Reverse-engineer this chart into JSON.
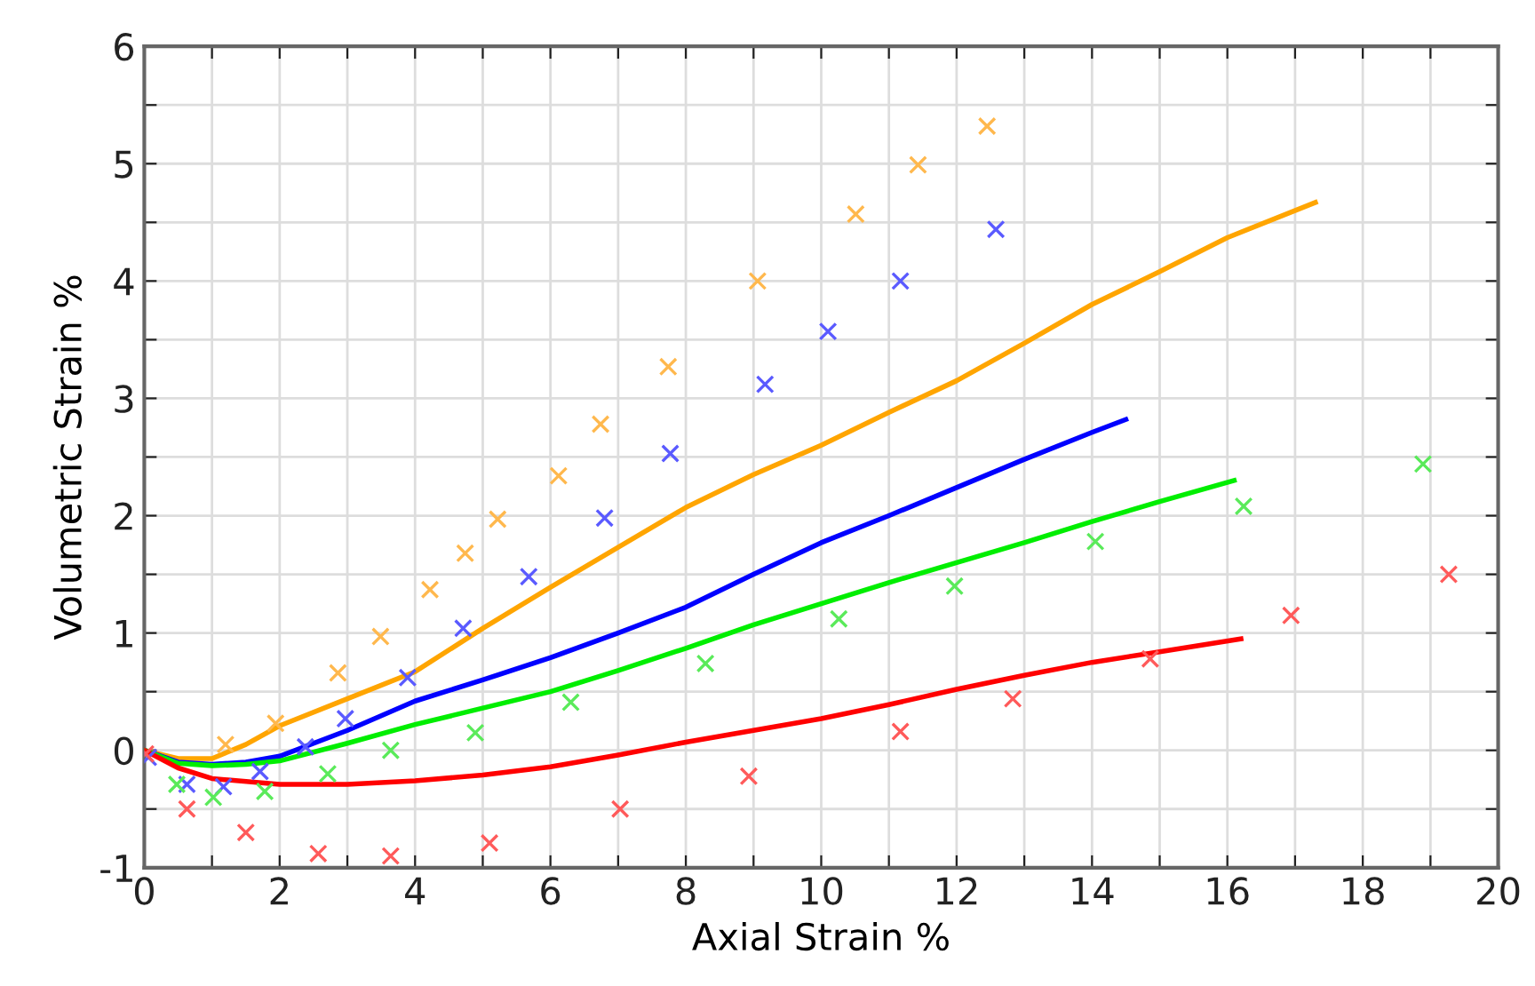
{
  "chart_data": {
    "type": "scatter",
    "xlabel": "Axial Strain %",
    "ylabel": "Volumetric Strain %",
    "xlim": [
      0,
      20
    ],
    "ylim": [
      -1,
      6
    ],
    "xticks": [
      0,
      {
        "value": 1,
        "label": null
      },
      2,
      {
        "value": 3,
        "label": null
      },
      4,
      {
        "value": 5,
        "label": null
      },
      6,
      {
        "value": 7,
        "label": null
      },
      8,
      {
        "value": 9,
        "label": null
      },
      10,
      {
        "value": 11,
        "label": null
      },
      12,
      {
        "value": 13,
        "label": null
      },
      14,
      {
        "value": 15,
        "label": null
      },
      16,
      {
        "value": 17,
        "label": null
      },
      18,
      {
        "value": 19,
        "label": null
      },
      20
    ],
    "yticks": [
      -1,
      {
        "value": -0.5,
        "label": null
      },
      0,
      {
        "value": 0.5,
        "label": null
      },
      1,
      {
        "value": 1.5,
        "label": null
      },
      2,
      {
        "value": 2.5,
        "label": null
      },
      3,
      {
        "value": 3.5,
        "label": null
      },
      4,
      {
        "value": 4.5,
        "label": null
      },
      5,
      {
        "value": 5.5,
        "label": null
      },
      6
    ],
    "grid": true,
    "legend": false,
    "series": [
      {
        "type": "line",
        "color": "#ffa500",
        "x": [
          0,
          0.5,
          1,
          1.5,
          2,
          3,
          4,
          5,
          6,
          7,
          8,
          9,
          10,
          11,
          12,
          13,
          14,
          15,
          16,
          17.3
        ],
        "values": [
          0,
          -0.07,
          -0.07,
          0.05,
          0.21,
          0.44,
          0.67,
          1.04,
          1.39,
          1.73,
          2.07,
          2.35,
          2.6,
          2.88,
          3.15,
          3.47,
          3.8,
          4.08,
          4.37,
          4.67
        ]
      },
      {
        "type": "line",
        "color": "#0000ff",
        "x": [
          0,
          0.5,
          1,
          1.5,
          2,
          3,
          4,
          5,
          6,
          7,
          8,
          9,
          10,
          11,
          12,
          13,
          14,
          14.5
        ],
        "values": [
          0,
          -0.1,
          -0.12,
          -0.1,
          -0.05,
          0.17,
          0.42,
          0.6,
          0.79,
          1.0,
          1.22,
          1.5,
          1.77,
          2.0,
          2.24,
          2.48,
          2.71,
          2.82
        ]
      },
      {
        "type": "line",
        "color": "#00ee00",
        "x": [
          0,
          0.5,
          1,
          1.5,
          2,
          3,
          4,
          5,
          6,
          7,
          8,
          9,
          10,
          11,
          12,
          13,
          14,
          15,
          16.1
        ],
        "values": [
          0,
          -0.11,
          -0.13,
          -0.12,
          -0.09,
          0.06,
          0.22,
          0.36,
          0.5,
          0.68,
          0.87,
          1.07,
          1.25,
          1.43,
          1.6,
          1.77,
          1.95,
          2.12,
          2.3
        ]
      },
      {
        "type": "line",
        "color": "#ff0000",
        "x": [
          0,
          0.5,
          1,
          2,
          3,
          4,
          5,
          6,
          7,
          8,
          9,
          10,
          11,
          12,
          13,
          14,
          15,
          16.2
        ],
        "values": [
          0,
          -0.15,
          -0.24,
          -0.29,
          -0.29,
          -0.26,
          -0.21,
          -0.14,
          -0.04,
          0.07,
          0.17,
          0.27,
          0.39,
          0.52,
          0.64,
          0.75,
          0.84,
          0.95
        ]
      },
      {
        "marker": "cross",
        "color": "#ffb84d",
        "x": [
          1.2,
          1.94,
          2.86,
          3.49,
          4.22,
          4.74,
          5.22,
          6.12,
          6.74,
          7.74,
          9.06,
          10.51,
          11.43,
          12.45
        ],
        "values": [
          0.05,
          0.23,
          0.66,
          0.97,
          1.37,
          1.68,
          1.97,
          2.34,
          2.78,
          3.27,
          4.0,
          4.57,
          4.99,
          5.32
        ]
      },
      {
        "marker": "cross",
        "color": "#5a5aff",
        "x": [
          0.06,
          0.63,
          1.17,
          1.71,
          2.38,
          2.97,
          3.89,
          4.71,
          5.68,
          6.8,
          7.77,
          9.17,
          10.1,
          11.17,
          12.58
        ],
        "values": [
          -0.06,
          -0.29,
          -0.31,
          -0.18,
          0.03,
          0.27,
          0.62,
          1.04,
          1.48,
          1.98,
          2.53,
          3.12,
          3.57,
          4.0,
          4.44
        ]
      },
      {
        "marker": "cross",
        "color": "#5aea5a",
        "x": [
          0.48,
          1.02,
          1.78,
          2.71,
          3.64,
          4.89,
          6.3,
          8.29,
          10.26,
          11.97,
          14.05,
          16.24,
          18.89
        ],
        "values": [
          -0.29,
          -0.4,
          -0.35,
          -0.2,
          0.0,
          0.15,
          0.41,
          0.74,
          1.12,
          1.4,
          1.78,
          2.08,
          2.44
        ]
      },
      {
        "marker": "cross",
        "color": "#ff5a5a",
        "x": [
          0.02,
          0.63,
          1.5,
          2.57,
          3.64,
          5.1,
          7.03,
          8.93,
          11.17,
          12.83,
          14.86,
          16.94,
          19.27
        ],
        "values": [
          -0.03,
          -0.5,
          -0.7,
          -0.88,
          -0.9,
          -0.79,
          -0.5,
          -0.22,
          0.16,
          0.44,
          0.78,
          1.15,
          1.5
        ]
      }
    ]
  }
}
